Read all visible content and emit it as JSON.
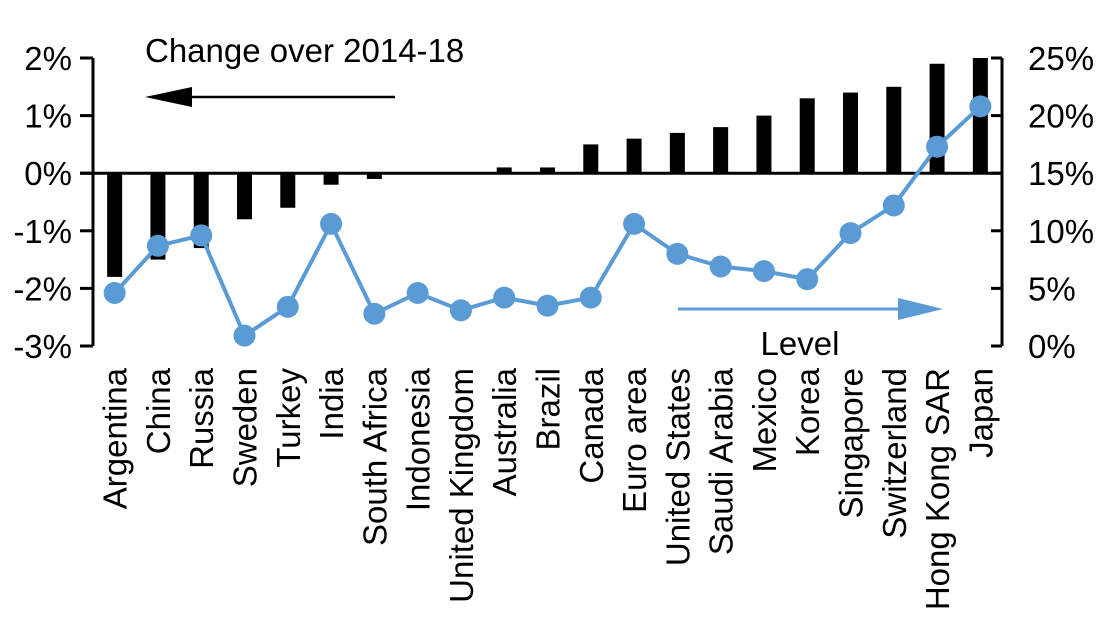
{
  "chart_data": {
    "type": "bar+line-dual-axis",
    "categories": [
      "Argentina",
      "China",
      "Russia",
      "Sweden",
      "Turkey",
      "India",
      "South Africa",
      "Indonesia",
      "United Kingdom",
      "Australia",
      "Brazil",
      "Canada",
      "Euro area",
      "United States",
      "Saudi Arabia",
      "Mexico",
      "Korea",
      "Singapore",
      "Switzerland",
      "Hong Kong SAR",
      "Japan"
    ],
    "series": [
      {
        "name": "Change over 2014-18",
        "type": "bar",
        "axis": "left",
        "color": "#000000",
        "values": [
          -1.8,
          -1.5,
          -1.3,
          -0.8,
          -0.6,
          -0.2,
          -0.1,
          0,
          0,
          0.1,
          0.1,
          0.5,
          0.6,
          0.7,
          0.8,
          1.0,
          1.3,
          1.4,
          1.5,
          1.9,
          2.0
        ]
      },
      {
        "name": "Level",
        "type": "line",
        "axis": "right",
        "color": "#5B9BD5",
        "values": [
          4.6,
          8.7,
          9.6,
          0.9,
          3.4,
          10.6,
          2.8,
          4.6,
          3.1,
          4.2,
          3.5,
          4.2,
          10.6,
          8.0,
          6.9,
          6.5,
          5.8,
          9.8,
          12.2,
          17.3,
          20.8
        ]
      }
    ],
    "left_axis": {
      "range": [
        -3,
        2
      ],
      "ticks": [
        2,
        1,
        0,
        -1,
        -2,
        -3
      ],
      "tick_labels": [
        "2%",
        "1%",
        "0%",
        "-1%",
        "-2%",
        "-3%"
      ]
    },
    "right_axis": {
      "range": [
        0,
        25
      ],
      "ticks": [
        25,
        20,
        15,
        10,
        5,
        0
      ],
      "tick_labels": [
        "25%",
        "20%",
        "15%",
        "10%",
        "5%",
        "0%"
      ]
    },
    "grid": false,
    "legend_position": "in-plot-annotations",
    "annotations": {
      "change": {
        "label": "Change over 2014-18",
        "arrow_direction": "left",
        "color": "#000000"
      },
      "level": {
        "label": "Level",
        "arrow_direction": "right",
        "color": "#5B9BD5"
      }
    }
  },
  "colors": {
    "background": "#FFFFFF",
    "bar": "#000000",
    "line": "#5B9BD5",
    "axis": "#000000",
    "text": "#000000"
  }
}
